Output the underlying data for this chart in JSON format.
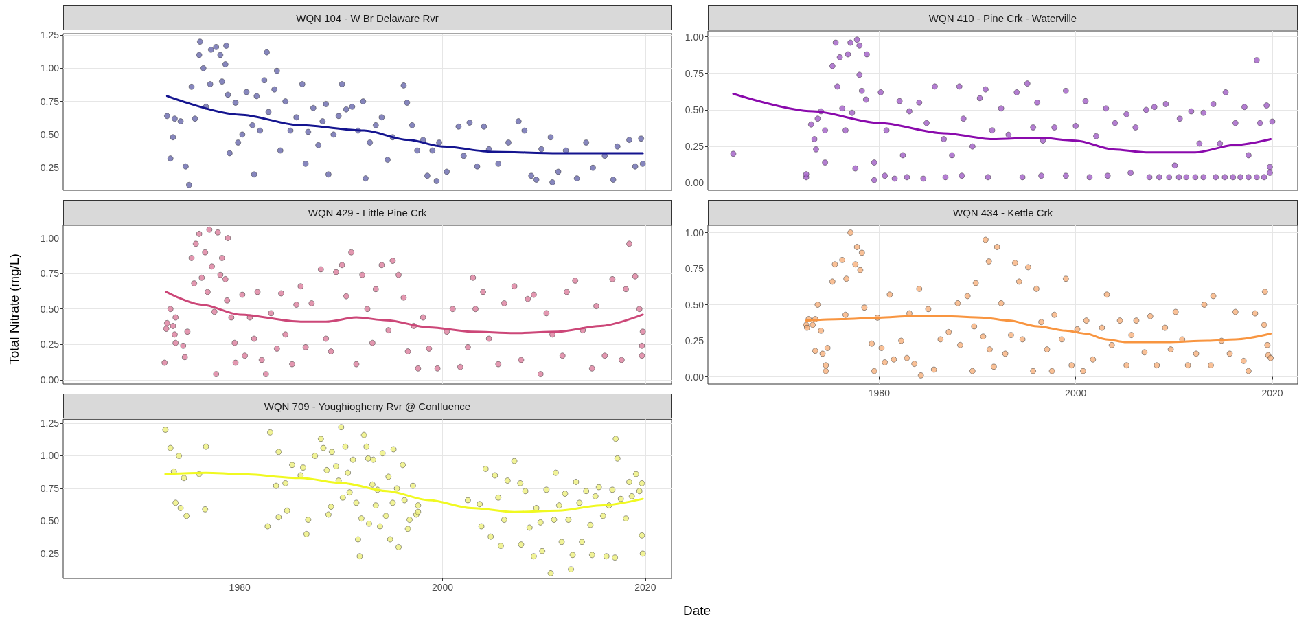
{
  "chart_data": [
    {
      "type": "scatter",
      "title": "WQN 104 - W Br Delaware Rvr",
      "xlim": [
        "1962-08",
        "2022-08"
      ],
      "xticks": [
        "1980",
        "2000",
        "2020"
      ],
      "ylim": [
        0.08,
        1.26
      ],
      "yticks": [
        0.25,
        {
          "value": 0.5,
          "label": "0.50"
        },
        0.75,
        {
          "value": 1,
          "label": "1.00"
        },
        1.25
      ],
      "grid": true,
      "tick_labels": "y",
      "marker": "circle",
      "series": [
        {
          "type": "scatter",
          "color": "#6868ad",
          "x": [
            "1972-11",
            "1973-03",
            "1973-06",
            "1973-08",
            "1974-03",
            "1974-09",
            "1975-01",
            "1975-04",
            "1975-08",
            "1976-02",
            "1976-01",
            "1976-06",
            "1976-09",
            "1977-02",
            "1977-03",
            "1977-09",
            "1978-02",
            "1978-04",
            "1978-08",
            "1978-09",
            "1978-11",
            "1979-01",
            "1979-08",
            "1979-11",
            "1980-04",
            "1980-09",
            "1981-04",
            "1981-06",
            "1981-09",
            "1982-01",
            "1982-06",
            "1982-09",
            "1982-11",
            "1983-06",
            "1983-09",
            "1984-01",
            "1984-07",
            "1985-01",
            "1985-08",
            "1986-03",
            "1986-07",
            "1986-10",
            "1987-04",
            "1987-10",
            "1988-03",
            "1988-07",
            "1988-10",
            "1989-04",
            "1989-10",
            "1990-02",
            "1990-07",
            "1991-02",
            "1991-09",
            "1992-03",
            "1992-06",
            "1992-11",
            "1993-06",
            "1994-01",
            "1994-08",
            "1995-02",
            "1996-03",
            "1996-07",
            "1997-01",
            "1997-07",
            "1998-02",
            "1998-07",
            "1999-01",
            "1999-06",
            "1999-09",
            "2000-06",
            "2001-08",
            "2002-02",
            "2002-09",
            "2003-06",
            "2004-02",
            "2004-08",
            "2005-07",
            "2006-07",
            "2007-07",
            "2008-02",
            "2008-10",
            "2009-04",
            "2009-10",
            "2010-09",
            "2010-11",
            "2011-06",
            "2012-03",
            "2013-04",
            "2014-03",
            "2014-11",
            "2016-01",
            "2016-11",
            "2017-04",
            "2018-06",
            "2019-01",
            "2019-08",
            "2019-10"
          ],
          "values": [
            0.64,
            0.32,
            0.48,
            0.62,
            0.6,
            0.26,
            0.12,
            0.86,
            0.62,
            1.2,
            1.1,
            1.0,
            0.71,
            0.88,
            1.14,
            1.16,
            1.1,
            0.9,
            1.03,
            1.17,
            0.8,
            0.36,
            0.74,
            0.44,
            0.5,
            0.82,
            0.57,
            0.2,
            0.79,
            0.53,
            0.91,
            1.12,
            0.67,
            0.84,
            0.98,
            0.38,
            0.75,
            0.53,
            0.63,
            0.88,
            0.28,
            0.52,
            0.7,
            0.42,
            0.6,
            0.73,
            0.2,
            0.5,
            0.64,
            0.88,
            0.69,
            0.71,
            0.53,
            0.75,
            0.17,
            0.44,
            0.57,
            0.63,
            0.31,
            0.48,
            0.87,
            0.74,
            0.57,
            0.38,
            0.46,
            0.19,
            0.38,
            0.15,
            0.44,
            0.22,
            0.56,
            0.34,
            0.59,
            0.26,
            0.56,
            0.39,
            0.28,
            0.44,
            0.6,
            0.53,
            0.19,
            0.16,
            0.39,
            0.48,
            0.14,
            0.22,
            0.38,
            0.17,
            0.44,
            0.25,
            0.34,
            0.16,
            0.41,
            0.46,
            0.26,
            0.47,
            0.28
          ]
        },
        {
          "type": "line",
          "color": "#14148f",
          "marker": "none",
          "x": [
            "1972-11",
            "1980-01",
            "1986-01",
            "1992-04",
            "1996-08",
            "2000-01",
            "2005-01",
            "2011-06",
            "2015-08",
            "2019-10"
          ],
          "values": [
            0.79,
            0.65,
            0.57,
            0.53,
            0.46,
            0.41,
            0.37,
            0.36,
            0.36,
            0.36
          ]
        }
      ]
    },
    {
      "type": "scatter",
      "title": "WQN 410 - Pine Crk - Waterville",
      "xlim": [
        "1962-08",
        "2022-08"
      ],
      "xticks": [
        "1980",
        "2000",
        "2020"
      ],
      "ylim": [
        -0.05,
        1.04
      ],
      "yticks": [
        {
          "value": 0,
          "label": "0.00"
        },
        0.25,
        {
          "value": 0.5,
          "label": "0.50"
        },
        0.75,
        {
          "value": 1,
          "label": "1.00"
        }
      ],
      "grid": true,
      "tick_labels": "y",
      "marker": "circle",
      "series": [
        {
          "type": "scatter",
          "color": "#a05cc6",
          "x": [
            "1965-03",
            "1972-08",
            "1972-08",
            "1973-02",
            "1973-06",
            "1973-08",
            "1973-10",
            "1974-02",
            "1974-07",
            "1974-07",
            "1975-04",
            "1975-08",
            "1975-10",
            "1976-01",
            "1976-04",
            "1976-08",
            "1976-11",
            "1977-02",
            "1977-04",
            "1977-08",
            "1977-10",
            "1978-01",
            "1978-01",
            "1978-04",
            "1978-10",
            "1978-09",
            "1979-07",
            "1979-07",
            "1980-03",
            "1980-08",
            "1980-10",
            "1981-08",
            "1982-02",
            "1982-06",
            "1982-11",
            "1983-02",
            "1984-02",
            "1984-07",
            "1984-11",
            "1985-09",
            "1986-08",
            "1986-10",
            "1987-06",
            "1988-03",
            "1988-06",
            "1988-08",
            "1989-07",
            "1990-04",
            "1990-11",
            "1991-02",
            "1991-07",
            "1992-06",
            "1993-03",
            "1994-01",
            "1994-08",
            "1995-02",
            "1995-09",
            "1996-02",
            "1996-07",
            "1996-09",
            "1997-11",
            "1999-01",
            "1999-01",
            "2000-01",
            "2001-01",
            "2001-06",
            "2002-02",
            "2003-02",
            "2003-04",
            "2004-01",
            "2005-03",
            "2005-08",
            "2006-02",
            "2007-03",
            "2007-07",
            "2008-01",
            "2008-07",
            "2009-03",
            "2009-07",
            "2010-02",
            "2010-07",
            "2010-08",
            "2011-04",
            "2011-10",
            "2012-03",
            "2012-08",
            "2013-01",
            "2013-01",
            "2014-01",
            "2014-04",
            "2014-09",
            "2015-03",
            "2015-04",
            "2016-01",
            "2016-04",
            "2016-10",
            "2017-03",
            "2017-08",
            "2017-08",
            "2018-06",
            "2018-06",
            "2018-10",
            "2019-03",
            "2019-06",
            "2019-10",
            "2019-10",
            "2020-01"
          ],
          "values": [
            0.2,
            0.04,
            0.06,
            0.4,
            0.3,
            0.23,
            0.44,
            0.49,
            0.36,
            0.14,
            0.8,
            0.96,
            0.66,
            0.86,
            0.51,
            0.36,
            0.88,
            0.96,
            0.48,
            0.1,
            0.98,
            0.94,
            0.74,
            0.63,
            0.88,
            0.57,
            0.02,
            0.14,
            0.62,
            0.05,
            0.36,
            0.03,
            0.56,
            0.19,
            0.04,
            0.49,
            0.55,
            0.03,
            0.41,
            0.66,
            0.3,
            0.04,
            0.19,
            0.66,
            0.05,
            0.44,
            0.25,
            0.58,
            0.64,
            0.04,
            0.36,
            0.51,
            0.33,
            0.62,
            0.04,
            0.68,
            0.38,
            0.55,
            0.05,
            0.29,
            0.38,
            0.63,
            0.05,
            0.39,
            0.56,
            0.04,
            0.32,
            0.51,
            0.05,
            0.41,
            0.47,
            0.07,
            0.38,
            0.5,
            0.04,
            0.52,
            0.04,
            0.54,
            0.04,
            0.12,
            0.04,
            0.44,
            0.04,
            0.49,
            0.04,
            0.27,
            0.48,
            0.04,
            0.54,
            0.04,
            0.27,
            0.04,
            0.62,
            0.04,
            0.41,
            0.04,
            0.52,
            0.19,
            0.04,
            0.84,
            0.04,
            0.41,
            0.04,
            0.53,
            0.11,
            0.07,
            0.42
          ]
        },
        {
          "type": "line",
          "color": "#8a0aac",
          "marker": "none",
          "x": [
            "1965-03",
            "1973-04",
            "1980-01",
            "1986-08",
            "1991-07",
            "1996-02",
            "2000-01",
            "2003-11",
            "2007-03",
            "2012-03",
            "2016-04",
            "2019-11"
          ],
          "values": [
            0.61,
            0.49,
            0.41,
            0.34,
            0.3,
            0.31,
            0.29,
            0.23,
            0.21,
            0.21,
            0.26,
            0.3
          ]
        }
      ]
    },
    {
      "type": "scatter",
      "title": "WQN 429 - Little Pine Crk",
      "xlim": [
        "1962-08",
        "2022-08"
      ],
      "xticks": [
        "1980",
        "2000",
        "2020"
      ],
      "ylim": [
        -0.03,
        1.09
      ],
      "yticks": [
        {
          "value": 0,
          "label": "0.00"
        },
        0.25,
        {
          "value": 0.5,
          "label": "0.50"
        },
        0.75,
        {
          "value": 1,
          "label": "1.00"
        }
      ],
      "grid": true,
      "tick_labels": "y",
      "marker": "circle",
      "ylabel": "Total Nitrate (mg/L)",
      "series": [
        {
          "type": "scatter",
          "color": "#dc7d9c",
          "x": [
            "1972-08",
            "1972-10",
            "1972-11",
            "1973-03",
            "1973-06",
            "1973-08",
            "1973-09",
            "1973-09",
            "1974-06",
            "1974-08",
            "1974-11",
            "1975-04",
            "1975-07",
            "1975-09",
            "1976-01",
            "1976-04",
            "1976-08",
            "1976-11",
            "1977-01",
            "1977-04",
            "1977-07",
            "1977-09",
            "1977-11",
            "1978-02",
            "1978-04",
            "1978-08",
            "1978-11",
            "1978-10",
            "1979-03",
            "1979-07",
            "1979-08",
            "1980-04",
            "1980-07",
            "1981-01",
            "1981-06",
            "1981-10",
            "1982-03",
            "1982-08",
            "1983-02",
            "1983-09",
            "1984-02",
            "1984-07",
            "1985-03",
            "1985-08",
            "1986-01",
            "1986-07",
            "1987-02",
            "1988-01",
            "1988-07",
            "1989-01",
            "1989-07",
            "1990-02",
            "1990-07",
            "1991-01",
            "1991-07",
            "1992-02",
            "1992-08",
            "1993-02",
            "1993-06",
            "1994-01",
            "1994-09",
            "1995-02",
            "1995-09",
            "1996-03",
            "1996-08",
            "1997-03",
            "1997-08",
            "1998-02",
            "1998-09",
            "1999-07",
            "2000-06",
            "2001-01",
            "2001-10",
            "2002-07",
            "2003-01",
            "2003-04",
            "2004-01",
            "2004-08",
            "2005-07",
            "2006-02",
            "2007-02",
            "2007-10",
            "2008-06",
            "2009-01",
            "2009-09",
            "2010-04",
            "2010-11",
            "2011-11",
            "2012-04",
            "2013-02",
            "2013-11",
            "2014-10",
            "2015-03",
            "2016-01",
            "2016-10",
            "2017-09",
            "2018-02",
            "2018-06",
            "2019-01",
            "2019-06",
            "2019-09",
            "2019-10",
            "2019-09"
          ],
          "values": [
            0.12,
            0.36,
            0.4,
            0.5,
            0.38,
            0.32,
            0.44,
            0.26,
            0.24,
            0.16,
            0.34,
            0.86,
            0.68,
            0.96,
            1.03,
            0.72,
            0.9,
            0.62,
            1.06,
            0.8,
            0.48,
            0.04,
            1.04,
            0.74,
            0.86,
            0.71,
            1.0,
            0.56,
            0.44,
            0.26,
            0.12,
            0.6,
            0.17,
            0.44,
            0.29,
            0.62,
            0.14,
            0.04,
            0.47,
            0.22,
            0.61,
            0.32,
            0.11,
            0.53,
            0.66,
            0.23,
            0.54,
            0.78,
            0.29,
            0.2,
            0.76,
            0.81,
            0.59,
            0.9,
            0.11,
            0.74,
            0.5,
            0.26,
            0.64,
            0.81,
            0.35,
            0.84,
            0.74,
            0.58,
            0.2,
            0.38,
            0.08,
            0.44,
            0.22,
            0.08,
            0.34,
            0.5,
            0.09,
            0.23,
            0.72,
            0.5,
            0.62,
            0.29,
            0.11,
            0.54,
            0.66,
            0.14,
            0.57,
            0.6,
            0.04,
            0.47,
            0.32,
            0.17,
            0.62,
            0.7,
            0.35,
            0.08,
            0.52,
            0.17,
            0.71,
            0.14,
            0.64,
            0.96,
            0.73,
            0.5,
            0.24,
            0.34,
            0.17
          ]
        },
        {
          "type": "line",
          "color": "#cc4778",
          "marker": "none",
          "x": [
            "1972-10",
            "1976-04",
            "1980-01",
            "1986-01",
            "1988-07",
            "1991-07",
            "1994-07",
            "1998-09",
            "2002-11",
            "2007-02",
            "2011-06",
            "2015-08",
            "2019-10"
          ],
          "values": [
            0.62,
            0.53,
            0.46,
            0.41,
            0.41,
            0.44,
            0.42,
            0.37,
            0.34,
            0.33,
            0.34,
            0.38,
            0.46
          ]
        }
      ]
    },
    {
      "type": "scatter",
      "title": "WQN 434 - Kettle Crk",
      "xlim": [
        "1962-08",
        "2022-08"
      ],
      "xticks": [
        "1980",
        "2000",
        "2020"
      ],
      "ylim": [
        -0.05,
        1.05
      ],
      "yticks": [
        {
          "value": 0,
          "label": "0.00"
        },
        0.25,
        {
          "value": 0.5,
          "label": "0.50"
        },
        0.75,
        {
          "value": 1,
          "label": "1.00"
        }
      ],
      "grid": true,
      "marker": "circle",
      "series": [
        {
          "type": "scatter",
          "color": "#f7b07c",
          "x": [
            "1972-08",
            "1972-09",
            "1972-11",
            "1973-04",
            "1973-07",
            "1973-10",
            "1973-07",
            "1974-02",
            "1974-04",
            "1974-08",
            "1974-08",
            "1974-10",
            "1975-04",
            "1975-07",
            "1976-04",
            "1976-08",
            "1976-09",
            "1977-02",
            "1977-08",
            "1977-10",
            "1978-02",
            "1978-04",
            "1978-07",
            "1979-04",
            "1979-07",
            "1979-11",
            "1980-04",
            "1980-08",
            "1981-02",
            "1981-07",
            "1982-04",
            "1982-11",
            "1983-02",
            "1983-08",
            "1984-02",
            "1984-04",
            "1985-01",
            "1985-08",
            "1986-04",
            "1987-02",
            "1988-01",
            "1988-04",
            "1989-01",
            "1989-07",
            "1989-09",
            "1989-11",
            "1990-08",
            "1990-11",
            "1991-03",
            "1991-04",
            "1991-09",
            "1992-01",
            "1992-06",
            "1992-11",
            "1993-06",
            "1993-11",
            "1994-04",
            "1994-08",
            "1995-03",
            "1995-09",
            "1996-01",
            "1996-07",
            "1997-02",
            "1997-08",
            "1997-11",
            "1998-08",
            "1999-01",
            "1999-08",
            "2000-03",
            "2000-10",
            "2001-02",
            "2001-10",
            "2002-09",
            "2003-03",
            "2003-09",
            "2004-07",
            "2005-03",
            "2005-09",
            "2006-03",
            "2007-01",
            "2007-08",
            "2008-04",
            "2009-02",
            "2009-09",
            "2010-03",
            "2010-11",
            "2011-06",
            "2012-04",
            "2013-02",
            "2013-10",
            "2014-01",
            "2014-11",
            "2015-09",
            "2016-04",
            "2017-02",
            "2017-08",
            "2018-04",
            "2019-03",
            "2019-04",
            "2019-07",
            "2019-08",
            "2019-11"
          ],
          "values": [
            0.36,
            0.34,
            0.4,
            0.36,
            0.4,
            0.5,
            0.18,
            0.32,
            0.16,
            0.08,
            0.04,
            0.2,
            0.66,
            0.78,
            0.81,
            0.43,
            0.68,
            1.0,
            0.78,
            0.9,
            0.74,
            0.86,
            0.48,
            0.23,
            0.04,
            0.41,
            0.2,
            0.1,
            0.57,
            0.12,
            0.25,
            0.13,
            0.44,
            0.09,
            0.61,
            0.01,
            0.47,
            0.05,
            0.26,
            0.31,
            0.51,
            0.22,
            0.56,
            0.04,
            0.35,
            0.65,
            0.28,
            0.95,
            0.8,
            0.19,
            0.07,
            0.9,
            0.51,
            0.16,
            0.29,
            0.79,
            0.66,
            0.26,
            0.76,
            0.04,
            0.61,
            0.38,
            0.19,
            0.04,
            0.43,
            0.26,
            0.68,
            0.08,
            0.33,
            0.04,
            0.39,
            0.12,
            0.34,
            0.57,
            0.22,
            0.39,
            0.08,
            0.29,
            0.39,
            0.17,
            0.42,
            0.08,
            0.34,
            0.19,
            0.45,
            0.26,
            0.08,
            0.16,
            0.5,
            0.08,
            0.56,
            0.25,
            0.16,
            0.45,
            0.11,
            0.04,
            0.44,
            0.36,
            0.59,
            0.22,
            0.15,
            0.13
          ]
        },
        {
          "type": "line",
          "color": "#f89540",
          "marker": "none",
          "x": [
            "1972-08",
            "1976-03",
            "1980-01",
            "1983-04",
            "1986-08",
            "1990-09",
            "1993-03",
            "1996-02",
            "1999-01",
            "2001-01",
            "2003-02",
            "2005-03",
            "2009-04",
            "2013-06",
            "2016-04",
            "2019-11"
          ],
          "values": [
            0.39,
            0.4,
            0.41,
            0.42,
            0.42,
            0.41,
            0.39,
            0.35,
            0.32,
            0.3,
            0.26,
            0.24,
            0.24,
            0.25,
            0.26,
            0.3
          ]
        }
      ]
    },
    {
      "type": "scatter",
      "title": "WQN 709 - Youghiogheny Rvr @ Confluence",
      "xlim": [
        "1962-08",
        "2022-08"
      ],
      "xticks": [
        "1980",
        "2000",
        "2020"
      ],
      "ylim": [
        0.06,
        1.28
      ],
      "yticks": [
        0.25,
        {
          "value": 0.5,
          "label": "0.50"
        },
        0.75,
        {
          "value": 1,
          "label": "1.00"
        },
        1.25
      ],
      "grid": true,
      "marker": "circle",
      "xlabel": "Date",
      "series": [
        {
          "type": "scatter",
          "color": "#eef07c",
          "x": [
            "1972-09",
            "1973-03",
            "1973-07",
            "1973-09",
            "1974-01",
            "1974-03",
            "1974-07",
            "1974-10",
            "1976-01",
            "1976-08",
            "1976-09",
            "1982-10",
            "1983-01",
            "1983-08",
            "1983-11",
            "1983-11",
            "1984-07",
            "1984-09",
            "1985-03",
            "1986-01",
            "1986-04",
            "1986-08",
            "1986-10",
            "1987-06",
            "1988-01",
            "1988-04",
            "1988-08",
            "1988-10",
            "1989-01",
            "1989-02",
            "1989-07",
            "1989-10",
            "1990-01",
            "1990-03",
            "1990-06",
            "1990-09",
            "1990-11",
            "1991-03",
            "1991-07",
            "1991-09",
            "1991-11",
            "1992-01",
            "1992-04",
            "1992-07",
            "1992-09",
            "1992-10",
            "1993-02",
            "1993-03",
            "1993-06",
            "1993-08",
            "1993-11",
            "1994-02",
            "1994-06",
            "1994-09",
            "1994-11",
            "1995-02",
            "1995-03",
            "1995-07",
            "1995-09",
            "1996-02",
            "1996-04",
            "1996-08",
            "1996-10",
            "1997-02",
            "1997-06",
            "1997-08",
            "1997-08",
            "2002-07",
            "2003-09",
            "2003-11",
            "2004-04",
            "2004-10",
            "2005-03",
            "2005-07",
            "2005-10",
            "2006-02",
            "2006-06",
            "2007-02",
            "2007-09",
            "2007-10",
            "2008-03",
            "2008-08",
            "2009-01",
            "2009-04",
            "2009-09",
            "2009-11",
            "2010-04",
            "2010-09",
            "2011-01",
            "2011-03",
            "2011-07",
            "2011-10",
            "2012-02",
            "2012-06",
            "2012-09",
            "2012-11",
            "2013-03",
            "2013-07",
            "2013-10",
            "2014-03",
            "2014-08",
            "2014-10",
            "2015-02",
            "2015-06",
            "2015-11",
            "2016-03",
            "2016-06",
            "2016-10",
            "2017-02",
            "2017-04",
            "2017-01",
            "2017-08",
            "2018-02",
            "2018-06",
            "2018-09",
            "2019-02",
            "2019-06",
            "2019-09",
            "2019-09",
            "2019-10"
          ],
          "values": [
            1.2,
            1.06,
            0.88,
            0.64,
            1.0,
            0.6,
            0.83,
            0.54,
            0.86,
            0.59,
            1.07,
            0.46,
            1.18,
            0.77,
            0.53,
            1.03,
            0.79,
            0.58,
            0.93,
            0.85,
            0.91,
            0.4,
            0.51,
            1.0,
            1.13,
            1.06,
            0.89,
            0.55,
            0.61,
            1.03,
            0.92,
            0.81,
            1.22,
            0.68,
            1.07,
            0.87,
            0.72,
            0.97,
            0.64,
            0.36,
            0.23,
            0.52,
            1.16,
            1.07,
            0.98,
            0.48,
            0.78,
            0.97,
            0.62,
            0.74,
            0.46,
            1.02,
            0.54,
            0.84,
            0.36,
            0.64,
            1.05,
            0.75,
            0.3,
            0.93,
            0.66,
            0.44,
            0.51,
            0.77,
            0.55,
            0.62,
            0.57,
            0.66,
            0.63,
            0.46,
            0.9,
            0.38,
            0.85,
            0.68,
            0.31,
            0.51,
            0.81,
            0.96,
            0.79,
            0.32,
            0.73,
            0.45,
            0.23,
            0.6,
            0.49,
            0.27,
            0.74,
            0.1,
            0.51,
            0.87,
            0.62,
            0.34,
            0.71,
            0.51,
            0.13,
            0.24,
            0.8,
            0.64,
            0.34,
            0.73,
            0.47,
            0.24,
            0.69,
            0.76,
            0.54,
            0.23,
            0.62,
            0.74,
            1.13,
            0.98,
            0.22,
            0.67,
            0.52,
            0.8,
            0.69,
            0.86,
            0.73,
            0.79,
            0.39,
            0.25
          ]
        },
        {
          "type": "line",
          "color": "#f0f921",
          "marker": "none",
          "x": [
            "1972-09",
            "1976-09",
            "1980-01",
            "1986-01",
            "1990-03",
            "1994-07",
            "1998-09",
            "2002-11",
            "2007-02",
            "2011-06",
            "2015-08",
            "2019-10"
          ],
          "values": [
            0.86,
            0.87,
            0.86,
            0.83,
            0.79,
            0.73,
            0.66,
            0.6,
            0.57,
            0.58,
            0.62,
            0.67
          ]
        }
      ]
    }
  ]
}
